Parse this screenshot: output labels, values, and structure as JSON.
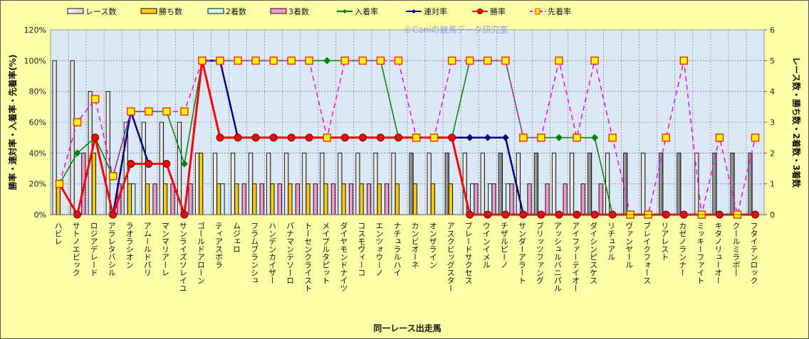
{
  "chart_data": {
    "type": "bar",
    "title": "",
    "watermark": "©Caniの競馬データ研究室",
    "xlabel": "同一レース出走馬",
    "ylabel_left": "勝率・連対率・入着率・先着率(%)",
    "ylabel_right": "レース数・勝ち数・2着数・3着数",
    "ylim_left": [
      0,
      120
    ],
    "ylim_right": [
      0,
      6
    ],
    "yticks_left": [
      "0%",
      "20%",
      "40%",
      "60%",
      "80%",
      "100%",
      "120%"
    ],
    "yticks_right": [
      "0",
      "1",
      "2",
      "3",
      "4",
      "5",
      "6"
    ],
    "grid": true,
    "legend_position": "top",
    "legend": [
      "レース数",
      "勝ち数",
      "2着数",
      "3着数",
      "入着率",
      "連対率",
      "勝率",
      "先着率"
    ],
    "categories": [
      "ハビレ",
      "サトノエピック",
      "ロジアデレード",
      "アラレタバシル",
      "ラオラシオン",
      "アムールドパリ",
      "マンマリアーレ",
      "サンライズソレイユ",
      "ゴールドアローン",
      "ティアスボラ",
      "ムジェロ",
      "フラムブランシュ",
      "ハンデンカイザー",
      "パナマンテソーロ",
      "トーセンクライスト",
      "メイプルタピット",
      "ダイヤモンドナイツ",
      "コスモヴィーコ",
      "エンツォウーノ",
      "ナチュラルハイ",
      "カンビオーネ",
      "オンザライン",
      "アスクビッグスター",
      "ブレードサクセス",
      "ウインイメル",
      "チザルピーノ",
      "サンダーアラート",
      "ブリッツファング",
      "アッシュルバニパル",
      "アイファーテイオー",
      "ダイシンピスケス",
      "リチュアル",
      "ヴァンヤール",
      "ブレイクフォース",
      "リアレスト",
      "カゼノランナー",
      "ミッキーファイト",
      "キタノリューオー",
      "クールミラボー",
      "フタイテンロック"
    ],
    "bar_series": [
      {
        "name": "レース数",
        "axis": "right",
        "color": "#e8e8e8",
        "values": [
          5,
          5,
          4,
          4,
          3,
          3,
          3,
          3,
          2,
          2,
          2,
          2,
          2,
          2,
          2,
          2,
          2,
          2,
          2,
          2,
          2,
          2,
          2,
          2,
          2,
          2,
          2,
          2,
          2,
          2,
          2,
          2,
          2,
          2,
          2,
          2,
          2,
          2,
          2,
          2
        ]
      },
      {
        "name": "勝ち数",
        "axis": "right",
        "color": "#ffcc00",
        "values": [
          1,
          0,
          2,
          0,
          1,
          1,
          1,
          0,
          2,
          1,
          1,
          1,
          1,
          1,
          1,
          1,
          1,
          1,
          1,
          1,
          1,
          1,
          1,
          0,
          0,
          0,
          0,
          0,
          0,
          0,
          0,
          0,
          0,
          0,
          0,
          0,
          0,
          0,
          0,
          0
        ]
      },
      {
        "name": "2着数",
        "axis": "right",
        "color": "#ccffff",
        "values": [
          0,
          0,
          0,
          0,
          1,
          0,
          0,
          0,
          0,
          1,
          0,
          0,
          0,
          0,
          0,
          0,
          0,
          0,
          0,
          0,
          0,
          0,
          0,
          1,
          1,
          1,
          0,
          0,
          0,
          0,
          0,
          0,
          0,
          0,
          0,
          0,
          0,
          0,
          0,
          0
        ]
      },
      {
        "name": "3着数",
        "axis": "right",
        "color": "#ff99cc",
        "values": [
          0,
          2,
          0,
          1,
          0,
          1,
          1,
          1,
          0,
          0,
          1,
          1,
          1,
          1,
          1,
          1,
          1,
          1,
          1,
          0,
          0,
          0,
          0,
          1,
          1,
          1,
          1,
          1,
          1,
          1,
          1,
          0,
          0,
          0,
          0,
          0,
          0,
          0,
          0,
          0
        ]
      }
    ],
    "line_series": [
      {
        "name": "入着率",
        "axis": "left",
        "color": "#008000",
        "marker": "diamond",
        "values": [
          20,
          40,
          50,
          25,
          67,
          67,
          67,
          33,
          100,
          100,
          100,
          100,
          100,
          100,
          100,
          100,
          100,
          100,
          100,
          50,
          50,
          50,
          50,
          100,
          100,
          100,
          50,
          50,
          50,
          50,
          50,
          0,
          0,
          0,
          0,
          0,
          0,
          0,
          0,
          0
        ]
      },
      {
        "name": "連対率",
        "axis": "left",
        "color": "#000080",
        "marker": "diamond",
        "values": [
          20,
          0,
          50,
          0,
          67,
          33,
          33,
          0,
          100,
          100,
          50,
          50,
          50,
          50,
          50,
          50,
          50,
          50,
          50,
          50,
          50,
          50,
          50,
          50,
          50,
          50,
          0,
          0,
          0,
          0,
          0,
          0,
          0,
          0,
          0,
          0,
          0,
          0,
          0,
          0
        ]
      },
      {
        "name": "勝率",
        "axis": "left",
        "color": "#ff0000",
        "marker": "circle",
        "values": [
          20,
          0,
          50,
          0,
          33,
          33,
          33,
          0,
          100,
          50,
          50,
          50,
          50,
          50,
          50,
          50,
          50,
          50,
          50,
          50,
          50,
          50,
          50,
          0,
          0,
          0,
          0,
          0,
          0,
          0,
          0,
          0,
          0,
          0,
          0,
          0,
          0,
          0,
          0,
          0
        ]
      },
      {
        "name": "先着率",
        "axis": "left",
        "color": "#ff00ff",
        "marker": "square",
        "dashed": true,
        "values": [
          20,
          60,
          75,
          25,
          67,
          67,
          67,
          67,
          100,
          100,
          100,
          100,
          100,
          100,
          100,
          50,
          100,
          100,
          100,
          100,
          50,
          50,
          100,
          100,
          100,
          100,
          50,
          50,
          100,
          50,
          100,
          50,
          0,
          0,
          50,
          100,
          0,
          50,
          0,
          50
        ]
      }
    ]
  }
}
